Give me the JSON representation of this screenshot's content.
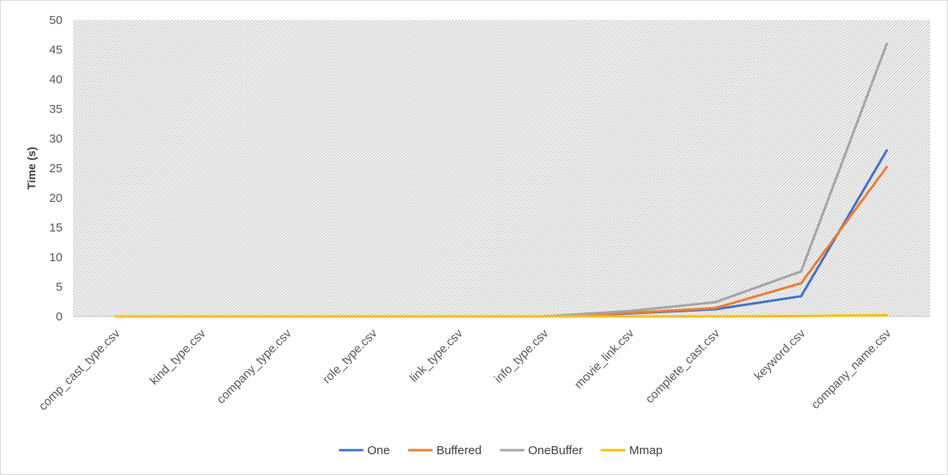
{
  "chart_data": {
    "type": "line",
    "title": "",
    "xlabel": "",
    "ylabel": "Time (s)",
    "ylim": [
      0,
      50
    ],
    "ytick_step": 5,
    "grid": false,
    "plot_area_fill": "hatched-gray",
    "legend_position": "bottom",
    "categories": [
      "comp_cast_type.csv",
      "kind_type.csv",
      "company_type.csv",
      "role_type.csv",
      "link_type.csv",
      "info_type.csv",
      "movie_link.csv",
      "complete_cast.csv",
      "keyword.csv",
      "company_name.csv"
    ],
    "series": [
      {
        "name": "One",
        "color": "#4472C4",
        "values": [
          0,
          0,
          0,
          0,
          0,
          0,
          0.5,
          1.2,
          3.4,
          28.0
        ]
      },
      {
        "name": "Buffered",
        "color": "#ED7D31",
        "values": [
          0,
          0,
          0,
          0,
          0,
          0,
          0.6,
          1.4,
          5.6,
          25.2
        ]
      },
      {
        "name": "OneBuffer",
        "color": "#A5A5A5",
        "values": [
          0,
          0,
          0,
          0,
          0,
          0,
          0.9,
          2.4,
          7.6,
          46.0
        ]
      },
      {
        "name": "Mmap",
        "color": "#FFC000",
        "values": [
          0,
          0,
          0,
          0,
          0,
          0,
          0,
          0,
          0.05,
          0.2
        ]
      }
    ]
  }
}
